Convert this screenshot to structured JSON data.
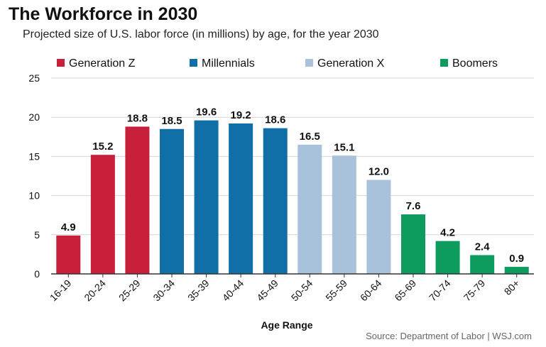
{
  "header": {
    "title": "The Workforce in 2030",
    "subtitle": "Projected size of U.S. labor force (in millions) by age, for the year 2030"
  },
  "footer": {
    "source": "Source: Department of Labor | WSJ.com"
  },
  "chart_data": {
    "type": "bar",
    "title": "The Workforce in 2030",
    "subtitle": "Projected size of U.S. labor force (in millions) by age, for the year 2030",
    "xlabel": "Age Range",
    "ylabel": "",
    "ylim": [
      0,
      25
    ],
    "yticks": [
      0,
      5,
      10,
      15,
      20,
      25
    ],
    "grid": true,
    "legend_position": "top",
    "categories": [
      "16-19",
      "20-24",
      "25-29",
      "30-34",
      "35-39",
      "40-44",
      "45-49",
      "50-54",
      "55-59",
      "60-64",
      "65-69",
      "70-74",
      "75-79",
      "80+"
    ],
    "values": [
      4.9,
      15.2,
      18.8,
      18.5,
      19.6,
      19.2,
      18.6,
      16.5,
      15.1,
      12.0,
      7.6,
      4.2,
      2.4,
      0.9
    ],
    "value_labels": [
      "4.9",
      "15.2",
      "18.8",
      "18.5",
      "19.6",
      "19.2",
      "18.6",
      "16.5",
      "15.1",
      "12.0",
      "7.6",
      "4.2",
      "2.4",
      "0.9"
    ],
    "bar_group": [
      0,
      0,
      0,
      1,
      1,
      1,
      1,
      2,
      2,
      2,
      3,
      3,
      3,
      3
    ],
    "groups": [
      {
        "name": "Generation Z",
        "color": "#c8203a"
      },
      {
        "name": "Millennials",
        "color": "#0f6fa6"
      },
      {
        "name": "Generation X",
        "color": "#a8c2db"
      },
      {
        "name": "Boomers",
        "color": "#0d9b5e"
      }
    ]
  }
}
